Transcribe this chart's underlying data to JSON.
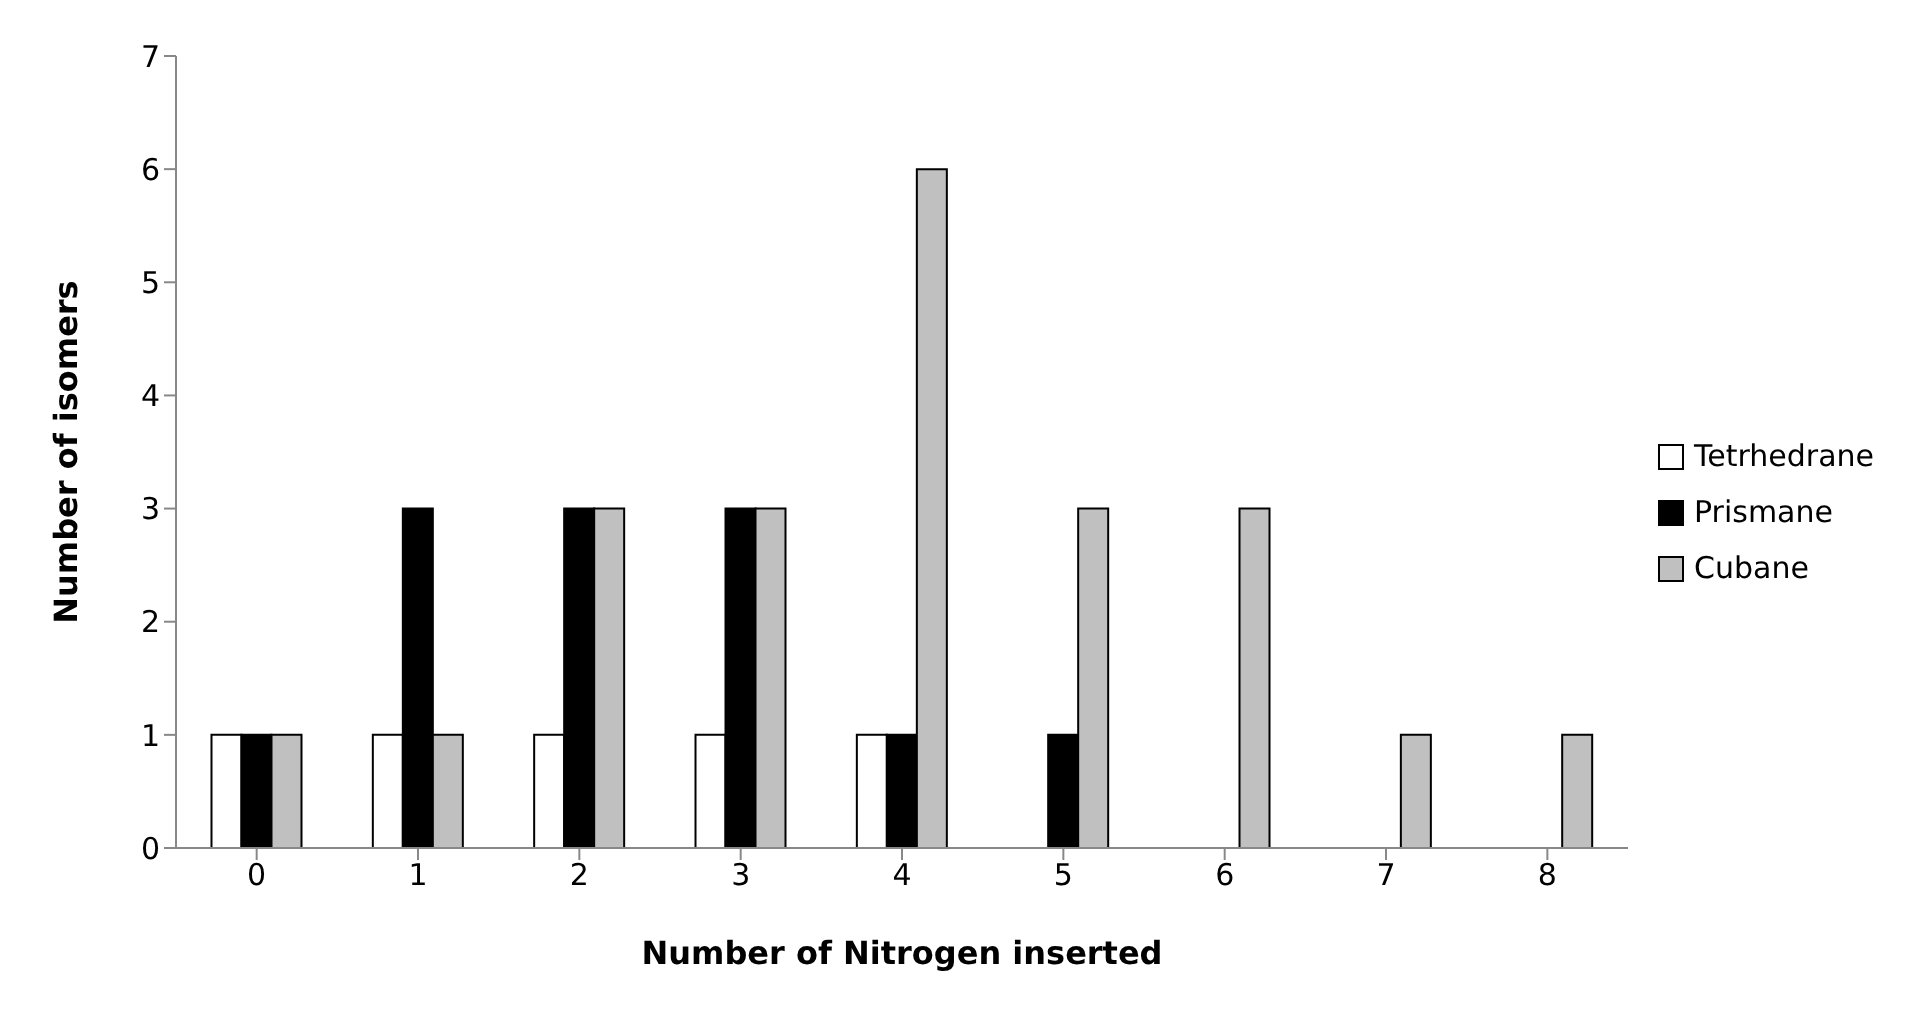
{
  "chart_data": {
    "type": "bar",
    "xlabel": "Number of Nitrogen inserted",
    "ylabel": "Number of isomers",
    "categories": [
      "0",
      "1",
      "2",
      "3",
      "4",
      "5",
      "6",
      "7",
      "8"
    ],
    "series": [
      {
        "name": "Tetrhedrane",
        "color": "#ffffff",
        "values": [
          1,
          1,
          1,
          1,
          1,
          0,
          0,
          0,
          0
        ]
      },
      {
        "name": "Prismane",
        "color": "#000000",
        "values": [
          1,
          3,
          3,
          3,
          1,
          1,
          0,
          0,
          0
        ]
      },
      {
        "name": "Cubane",
        "color": "#c0c0c0",
        "values": [
          1,
          1,
          3,
          3,
          6,
          3,
          3,
          1,
          1
        ]
      }
    ],
    "ylim": [
      0,
      7
    ],
    "yticks": [
      0,
      1,
      2,
      3,
      4,
      5,
      6,
      7
    ],
    "grid": false,
    "legend": "right"
  }
}
